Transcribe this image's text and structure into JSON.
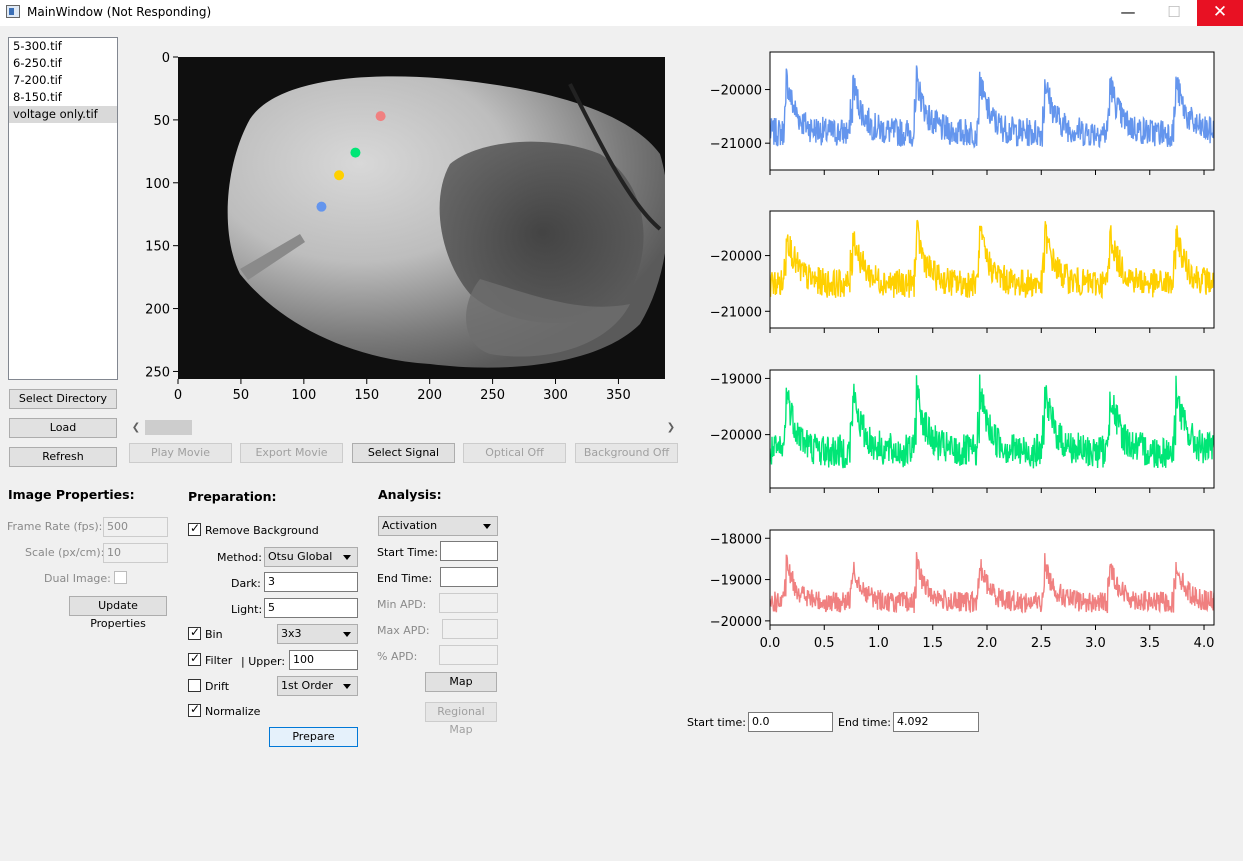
{
  "window": {
    "title": "MainWindow (Not Responding)",
    "minimize": "—",
    "maximize": "☐",
    "close": "✕"
  },
  "files": [
    "5-300.tif",
    "6-250.tif",
    "7-200.tif",
    "8-150.tif",
    "voltage only.tif"
  ],
  "selected_file": "voltage only.tif",
  "left_buttons": {
    "select_directory": "Select Directory",
    "load": "Load",
    "refresh": "Refresh"
  },
  "movie_buttons": {
    "play_movie": "Play Movie",
    "export_movie": "Export Movie",
    "select_signal": "Select Signal",
    "optical_off": "Optical Off",
    "background_off": "Background Off"
  },
  "image_properties": {
    "heading": "Image Properties:",
    "frame_rate_label": "Frame Rate (fps):",
    "frame_rate_value": "500",
    "scale_label": "Scale (px/cm):",
    "scale_value": "10",
    "dual_image_label": "Dual Image:",
    "update_button": "Update Properties"
  },
  "preparation": {
    "heading": "Preparation:",
    "remove_background_label": "Remove Background",
    "remove_background_checked": true,
    "method_label": "Method:",
    "method_value": "Otsu Global",
    "dark_label": "Dark:",
    "dark_value": "3",
    "light_label": "Light:",
    "light_value": "5",
    "bin_label": "Bin",
    "bin_checked": true,
    "bin_value": "3x3",
    "filter_label": "Filter",
    "filter_checked": true,
    "upper_label": "| Upper:",
    "upper_value": "100",
    "drift_label": "Drift",
    "drift_checked": false,
    "drift_value": "1st Order",
    "normalize_label": "Normalize",
    "normalize_checked": true,
    "prepare_button": "Prepare"
  },
  "analysis": {
    "heading": "Analysis:",
    "type_value": "Activation",
    "start_time_label": "Start Time:",
    "start_time_value": "",
    "end_time_label": "End Time:",
    "end_time_value": "",
    "min_apd_label": "Min APD:",
    "max_apd_label": "Max APD:",
    "pct_apd_label": "% APD:",
    "map_button": "Map",
    "regional_map_button": "Regional Map"
  },
  "time_range": {
    "start_label": "Start time:",
    "start_value": "0.0",
    "end_label": "End time:",
    "end_value": "4.092"
  },
  "image_view": {
    "x_ticks": [
      "0",
      "50",
      "100",
      "150",
      "200",
      "250",
      "300",
      "350"
    ],
    "y_ticks": [
      "0",
      "50",
      "100",
      "150",
      "200",
      "250"
    ],
    "markers": [
      {
        "x": 161,
        "y": 47,
        "color": "#f08080"
      },
      {
        "x": 141,
        "y": 76,
        "color": "#00e676"
      },
      {
        "x": 128,
        "y": 94,
        "color": "#ffd000"
      },
      {
        "x": 114,
        "y": 119,
        "color": "#6495ed"
      }
    ]
  },
  "chart_data": [
    {
      "type": "line",
      "series": [
        {
          "color": "#6495ed"
        }
      ],
      "ylim": [
        -21500,
        -19300
      ],
      "y_ticks": [
        "-20000",
        "-21000"
      ],
      "y_tick_values": [
        -20000,
        -21000
      ],
      "xlim": [
        0,
        4.092
      ],
      "baseline": -20800,
      "spike_peak": -19600,
      "spike_times": [
        0.15,
        0.76,
        1.35,
        1.93,
        2.53,
        3.13,
        3.74
      ]
    },
    {
      "type": "line",
      "series": [
        {
          "color": "#ffd000"
        }
      ],
      "ylim": [
        -21300,
        -19200
      ],
      "y_ticks": [
        "-20000",
        "-21000"
      ],
      "y_tick_values": [
        -20000,
        -21000
      ],
      "xlim": [
        0,
        4.092
      ],
      "baseline": -20500,
      "spike_peak": -19350,
      "spike_times": [
        0.15,
        0.76,
        1.35,
        1.93,
        2.53,
        3.13,
        3.74
      ]
    },
    {
      "type": "line",
      "series": [
        {
          "color": "#00e676"
        }
      ],
      "ylim": [
        -20950,
        -18850
      ],
      "y_ticks": [
        "-19000",
        "-20000"
      ],
      "y_tick_values": [
        -19000,
        -20000
      ],
      "xlim": [
        0,
        4.092
      ],
      "baseline": -20300,
      "spike_peak": -18950,
      "spike_times": [
        0.15,
        0.76,
        1.35,
        1.93,
        2.53,
        3.13,
        3.74
      ]
    },
    {
      "type": "line",
      "series": [
        {
          "color": "#f08080"
        }
      ],
      "ylim": [
        -20100,
        -17800
      ],
      "y_ticks": [
        "-18000",
        "-19000",
        "-20000"
      ],
      "y_tick_values": [
        -18000,
        -19000,
        -20000
      ],
      "xlim": [
        0,
        4.092
      ],
      "x_ticks": [
        "0.0",
        "0.5",
        "1.0",
        "1.5",
        "2.0",
        "2.5",
        "3.0",
        "3.5",
        "4.0"
      ],
      "x_tick_values": [
        0,
        0.5,
        1.0,
        1.5,
        2.0,
        2.5,
        3.0,
        3.5,
        4.0
      ],
      "baseline": -19550,
      "spike_peak": -18400,
      "spike_times": [
        0.15,
        0.76,
        1.35,
        1.93,
        2.53,
        3.13,
        3.74
      ]
    }
  ]
}
